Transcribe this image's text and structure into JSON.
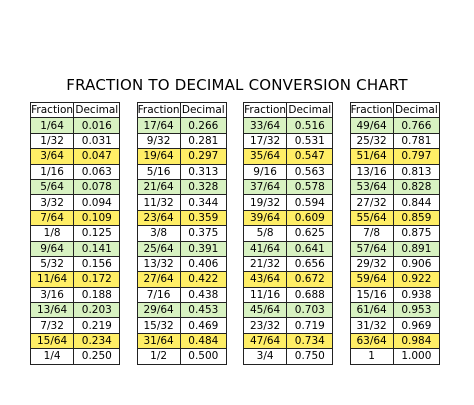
{
  "title": "FRACTION TO DECIMAL CONVERSION CHART",
  "colors": {
    "green_band": "#d8f2c2",
    "yellow_band": "#ffee66",
    "white_band": "#ffffff",
    "border": "#222222"
  },
  "headers": {
    "fraction": "Fraction",
    "decimal": "Decimal"
  },
  "row_bands": [
    "green",
    "white",
    "yellow",
    "white",
    "green",
    "white",
    "yellow",
    "white",
    "green",
    "white",
    "yellow",
    "white",
    "green",
    "white",
    "yellow",
    "white"
  ],
  "groups": [
    {
      "fractions": [
        "1/64",
        "1/32",
        "3/64",
        "1/16",
        "5/64",
        "3/32",
        "7/64",
        "1/8",
        "9/64",
        "5/32",
        "11/64",
        "3/16",
        "13/64",
        "7/32",
        "15/64",
        "1/4"
      ],
      "decimals": [
        "0.016",
        "0.031",
        "0.047",
        "0.063",
        "0.078",
        "0.094",
        "0.109",
        "0.125",
        "0.141",
        "0.156",
        "0.172",
        "0.188",
        "0.203",
        "0.219",
        "0.234",
        "0.250"
      ]
    },
    {
      "fractions": [
        "17/64",
        "9/32",
        "19/64",
        "5/16",
        "21/64",
        "11/32",
        "23/64",
        "3/8",
        "25/64",
        "13/32",
        "27/64",
        "7/16",
        "29/64",
        "15/32",
        "31/64",
        "1/2"
      ],
      "decimals": [
        "0.266",
        "0.281",
        "0.297",
        "0.313",
        "0.328",
        "0.344",
        "0.359",
        "0.375",
        "0.391",
        "0.406",
        "0.422",
        "0.438",
        "0.453",
        "0.469",
        "0.484",
        "0.500"
      ]
    },
    {
      "fractions": [
        "33/64",
        "17/32",
        "35/64",
        "9/16",
        "37/64",
        "19/32",
        "39/64",
        "5/8",
        "41/64",
        "21/32",
        "43/64",
        "11/16",
        "45/64",
        "23/32",
        "47/64",
        "3/4"
      ],
      "decimals": [
        "0.516",
        "0.531",
        "0.547",
        "0.563",
        "0.578",
        "0.594",
        "0.609",
        "0.625",
        "0.641",
        "0.656",
        "0.672",
        "0.688",
        "0.703",
        "0.719",
        "0.734",
        "0.750"
      ]
    },
    {
      "fractions": [
        "49/64",
        "25/32",
        "51/64",
        "13/16",
        "53/64",
        "27/32",
        "55/64",
        "7/8",
        "57/64",
        "29/32",
        "59/64",
        "15/16",
        "61/64",
        "31/32",
        "63/64",
        "1"
      ],
      "decimals": [
        "0.766",
        "0.781",
        "0.797",
        "0.813",
        "0.828",
        "0.844",
        "0.859",
        "0.875",
        "0.891",
        "0.906",
        "0.922",
        "0.938",
        "0.953",
        "0.969",
        "0.984",
        "1.000"
      ]
    }
  ]
}
